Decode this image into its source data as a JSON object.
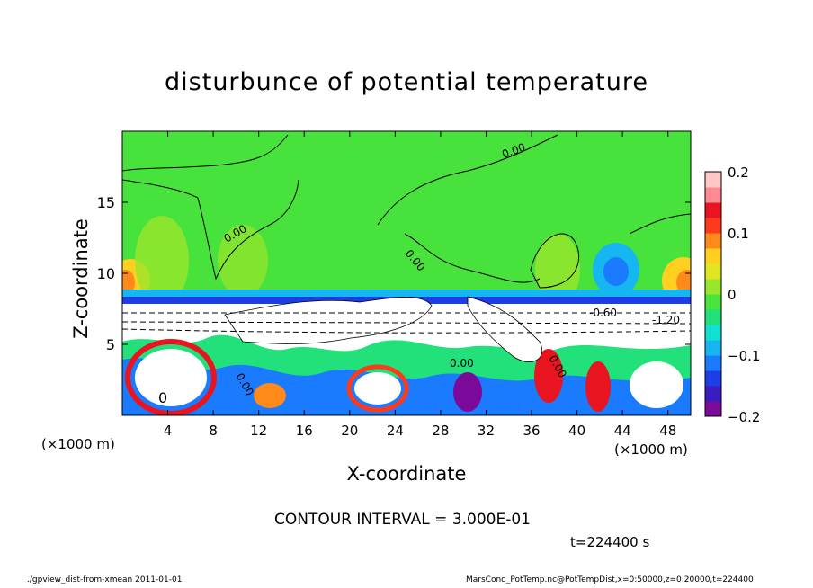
{
  "chart_data": {
    "type": "heatmap",
    "title": "disturbunce of potential temperature",
    "xlabel": "X-coordinate",
    "ylabel": "Z-coordinate",
    "x_unit_left": "(×1000 m)",
    "x_unit_right": "(×1000 m)",
    "xlim": [
      0,
      50
    ],
    "ylim": [
      0,
      20
    ],
    "x_ticks": [
      4,
      8,
      12,
      16,
      20,
      24,
      28,
      32,
      36,
      40,
      44,
      48
    ],
    "y_ticks": [
      5,
      10,
      15
    ],
    "colorbar": {
      "range": [
        -0.2,
        0.2
      ],
      "ticks": [
        {
          "value": 0.2,
          "label": "0.2"
        },
        {
          "value": 0.1,
          "label": "0.1"
        },
        {
          "value": 0.0,
          "label": "0"
        },
        {
          "value": -0.1,
          "label": "−0.1"
        },
        {
          "value": -0.2,
          "label": "−0.2"
        }
      ],
      "colors": [
        "#7b0a9b",
        "#3a1dc2",
        "#1d3de6",
        "#1a7bff",
        "#16b6f0",
        "#12e0d2",
        "#22e07a",
        "#46e63c",
        "#9ae62a",
        "#e0e622",
        "#ffd020",
        "#ff8a1a",
        "#ff3a1a",
        "#e81420",
        "#ff8a96",
        "#ffc6c6"
      ]
    },
    "contour_labels": [
      "0.00",
      "0.00",
      "0.00",
      "0.00",
      "0.00",
      "-0.60",
      "0.00",
      "0",
      "-1.20"
    ],
    "contour_interval": "CONTOUR INTERVAL = 3.000E-01",
    "time": "t=224400 s"
  },
  "footer": {
    "left": "./gpview_dist-from-xmean  2011-01-01",
    "right": "MarsCond_PotTemp.nc@PotTempDist,x=0:50000,z=0:20000,t=224400"
  }
}
